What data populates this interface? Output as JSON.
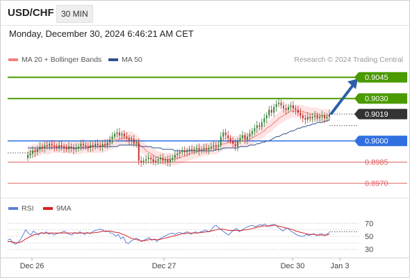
{
  "header": {
    "symbol": "USD/CHF",
    "timeframe": "30 MIN",
    "datetime": "Monday, December 30, 2024 6:46:21 AM CET"
  },
  "legend": {
    "ma20_label": "MA 20 + Bollinger Bands",
    "ma50_label": "MA 50",
    "credit": "Research © 2024 Trading Central",
    "ma20_color": "#f08080",
    "ma50_color": "#2f4f8f",
    "rsi_label": "RSI",
    "rsi9_label": "9MA",
    "rsi_color": "#5b7fd6",
    "rsi9_color": "#d62020"
  },
  "chart_data": [
    {
      "type": "candlestick",
      "name": "price",
      "x_ticks": [
        "Dec 26",
        "Dec 27",
        "Dec 30",
        "Jan 3"
      ],
      "ylim": [
        0.8962,
        0.9052
      ],
      "current_price": 0.9019,
      "levels": [
        {
          "value": 0.9045,
          "label": "0.9045",
          "kind": "target",
          "color": "#4a9a00"
        },
        {
          "value": 0.903,
          "label": "0.9030",
          "kind": "target",
          "color": "#4a9a00"
        },
        {
          "value": 0.9019,
          "label": "0.9019",
          "kind": "last",
          "color": "#333333"
        },
        {
          "value": 0.9,
          "label": "0.9000",
          "kind": "pivot",
          "color": "#2f6fe0"
        },
        {
          "value": 0.8985,
          "label": "0.8985",
          "kind": "support",
          "color": "#e06060"
        },
        {
          "value": 0.897,
          "label": "0.8970",
          "kind": "support",
          "color": "#e06060"
        }
      ],
      "bullish_color": "#2e7d32",
      "bearish_color": "#c62828",
      "closes": [
        0.899,
        0.8991,
        0.8993,
        0.8992,
        0.8994,
        0.8996,
        0.8995,
        0.8997,
        0.8996,
        0.8998,
        0.8997,
        0.8996,
        0.8995,
        0.8997,
        0.8996,
        0.8995,
        0.8994,
        0.8996,
        0.8995,
        0.8994,
        0.8995,
        0.8996,
        0.8998,
        0.8997,
        0.8996,
        0.8995,
        0.8997,
        0.8996,
        0.8998,
        0.8997,
        0.8996,
        0.8998,
        0.8997,
        0.8999,
        0.9001,
        0.9003,
        0.9005,
        0.9006,
        0.9004,
        0.9005,
        0.9003,
        0.9002,
        0.9,
        0.9001,
        0.8998,
        0.8999,
        0.8986,
        0.8985,
        0.8986,
        0.8987,
        0.8988,
        0.8987,
        0.8985,
        0.8986,
        0.8987,
        0.8988,
        0.8986,
        0.8987,
        0.8985,
        0.8987,
        0.8988,
        0.899,
        0.8991,
        0.8992,
        0.8993,
        0.8992,
        0.8993,
        0.8994,
        0.8993,
        0.8994,
        0.8995,
        0.8993,
        0.8994,
        0.8995,
        0.8994,
        0.8995,
        0.8996,
        0.8997,
        0.8996,
        0.8997,
        0.9003,
        0.9006,
        0.9004,
        0.9002,
        0.9,
        0.8998,
        0.8996,
        0.9,
        0.9002,
        0.9004,
        0.9001,
        0.9003,
        0.9005,
        0.9007,
        0.9009,
        0.9011,
        0.901,
        0.9013,
        0.9016,
        0.9018,
        0.9022,
        0.902,
        0.9024,
        0.9026,
        0.9027,
        0.9025,
        0.9023,
        0.9022,
        0.9024,
        0.9025,
        0.9023,
        0.9022,
        0.902,
        0.9018,
        0.9016,
        0.9015,
        0.9017,
        0.9016,
        0.9017,
        0.9018,
        0.9016,
        0.9017,
        0.9018,
        0.9016,
        0.9017,
        0.9019
      ],
      "ma20": [
        0.8992,
        0.8992,
        0.8993,
        0.8993,
        0.8994,
        0.8994,
        0.8995,
        0.8995,
        0.8995,
        0.8995,
        0.8996,
        0.8996,
        0.8996,
        0.8996,
        0.8996,
        0.8996,
        0.8996,
        0.8996,
        0.8995,
        0.8995,
        0.8995,
        0.8995,
        0.8995,
        0.8996,
        0.8996,
        0.8996,
        0.8996,
        0.8996,
        0.8996,
        0.8996,
        0.8996,
        0.8996,
        0.8997,
        0.8997,
        0.8998,
        0.8999,
        0.9,
        0.9001,
        0.9001,
        0.9002,
        0.9002,
        0.9002,
        0.9002,
        0.9002,
        0.9001,
        0.9,
        0.8998,
        0.8996,
        0.8995,
        0.8993,
        0.8992,
        0.8991,
        0.899,
        0.8989,
        0.8988,
        0.8988,
        0.8987,
        0.8987,
        0.8987,
        0.8987,
        0.8987,
        0.8987,
        0.8988,
        0.8988,
        0.8989,
        0.8989,
        0.899,
        0.8991,
        0.8991,
        0.8992,
        0.8992,
        0.8993,
        0.8993,
        0.8994,
        0.8994,
        0.8994,
        0.8995,
        0.8995,
        0.8995,
        0.8996,
        0.8997,
        0.8998,
        0.8998,
        0.8999,
        0.8999,
        0.8999,
        0.8999,
        0.8999,
        0.9,
        0.9,
        0.9,
        0.9001,
        0.9001,
        0.9002,
        0.9003,
        0.9004,
        0.9005,
        0.9006,
        0.9007,
        0.9009,
        0.901,
        0.9011,
        0.9013,
        0.9014,
        0.9016,
        0.9017,
        0.9018,
        0.9019,
        0.902,
        0.9021,
        0.9021,
        0.9021,
        0.9021,
        0.9021,
        0.9021,
        0.902,
        0.902,
        0.9019,
        0.9019,
        0.9019,
        0.9019,
        0.9018,
        0.9018,
        0.9018,
        0.9018,
        0.9018
      ],
      "bollinger_width": 0.00045,
      "ma50": [
        0.8995,
        0.8995,
        0.8995,
        0.8995,
        0.8995,
        0.8995,
        0.8995,
        0.8995,
        0.8995,
        0.8995,
        0.8995,
        0.8995,
        0.8995,
        0.8995,
        0.8995,
        0.8995,
        0.8995,
        0.8995,
        0.8995,
        0.8995,
        0.8995,
        0.8995,
        0.8995,
        0.8995,
        0.8995,
        0.8995,
        0.8996,
        0.8996,
        0.8996,
        0.8996,
        0.8996,
        0.8996,
        0.8996,
        0.8996,
        0.8996,
        0.8996,
        0.8996,
        0.8996,
        0.8997,
        0.8997,
        0.8997,
        0.8997,
        0.8997,
        0.8997,
        0.8997,
        0.8997,
        0.8997,
        0.8996,
        0.8996,
        0.8996,
        0.8996,
        0.8996,
        0.8995,
        0.8995,
        0.8995,
        0.8995,
        0.8994,
        0.8994,
        0.8994,
        0.8994,
        0.8994,
        0.8993,
        0.8993,
        0.8993,
        0.8993,
        0.8993,
        0.8993,
        0.8993,
        0.8993,
        0.8993,
        0.8993,
        0.8993,
        0.8993,
        0.8993,
        0.8993,
        0.8993,
        0.8993,
        0.8993,
        0.8994,
        0.8994,
        0.8994,
        0.8995,
        0.8995,
        0.8995,
        0.8995,
        0.8995,
        0.8995,
        0.8995,
        0.8996,
        0.8996,
        0.8996,
        0.8996,
        0.8997,
        0.8997,
        0.8997,
        0.8998,
        0.8998,
        0.8999,
        0.8999,
        0.9,
        0.9,
        0.9001,
        0.9002,
        0.9003,
        0.9003,
        0.9004,
        0.9005,
        0.9005,
        0.9006,
        0.9007,
        0.9007,
        0.9008,
        0.9009,
        0.9009,
        0.901,
        0.901,
        0.9011,
        0.9011,
        0.9012,
        0.9012,
        0.9013,
        0.9013,
        0.9013,
        0.9014,
        0.9014,
        0.9015
      ]
    },
    {
      "type": "line",
      "name": "rsi",
      "ylim": [
        20,
        80
      ],
      "y_ticks": [
        70,
        50,
        30
      ],
      "gridlines": [
        70,
        60,
        50,
        40,
        30
      ],
      "rsi": [
        44,
        46,
        40,
        38,
        40,
        45,
        52,
        60,
        55,
        52,
        58,
        55,
        52,
        56,
        54,
        57,
        53,
        55,
        52,
        54,
        55,
        56,
        58,
        55,
        53,
        52,
        56,
        54,
        57,
        55,
        53,
        56,
        54,
        57,
        59,
        60,
        61,
        60,
        57,
        58,
        55,
        54,
        50,
        53,
        46,
        49,
        40,
        39,
        43,
        45,
        47,
        45,
        42,
        44,
        46,
        48,
        44,
        46,
        42,
        46,
        48,
        50,
        52,
        54,
        55,
        53,
        55,
        56,
        54,
        56,
        57,
        53,
        55,
        57,
        55,
        57,
        58,
        60,
        57,
        59,
        65,
        67,
        63,
        60,
        57,
        54,
        52,
        57,
        60,
        62,
        57,
        60,
        62,
        64,
        66,
        67,
        65,
        66,
        68,
        67,
        69,
        65,
        67,
        68,
        68,
        64,
        61,
        58,
        62,
        62,
        58,
        56,
        53,
        51,
        50,
        50,
        53,
        51,
        53,
        54,
        51,
        53,
        54,
        51,
        53,
        56
      ],
      "rsi_ma9": [
        42,
        42,
        41,
        40,
        40,
        41,
        43,
        46,
        48,
        50,
        52,
        53,
        54,
        55,
        55,
        55,
        55,
        55,
        55,
        55,
        55,
        55,
        55,
        55,
        55,
        55,
        55,
        55,
        55,
        55,
        55,
        55,
        55,
        55,
        56,
        56,
        57,
        58,
        58,
        58,
        58,
        57,
        56,
        56,
        54,
        53,
        51,
        49,
        47,
        46,
        45,
        44,
        43,
        43,
        44,
        45,
        45,
        45,
        45,
        45,
        46,
        47,
        48,
        49,
        50,
        51,
        52,
        53,
        54,
        54,
        55,
        55,
        55,
        55,
        55,
        56,
        56,
        57,
        57,
        58,
        59,
        60,
        61,
        61,
        61,
        60,
        59,
        59,
        59,
        59,
        59,
        59,
        60,
        60,
        61,
        62,
        63,
        64,
        65,
        66,
        66,
        66,
        66,
        67,
        67,
        66,
        65,
        64,
        63,
        62,
        61,
        60,
        58,
        57,
        56,
        55,
        54,
        53,
        53,
        53,
        52,
        52,
        52,
        52,
        52,
        53
      ]
    }
  ]
}
